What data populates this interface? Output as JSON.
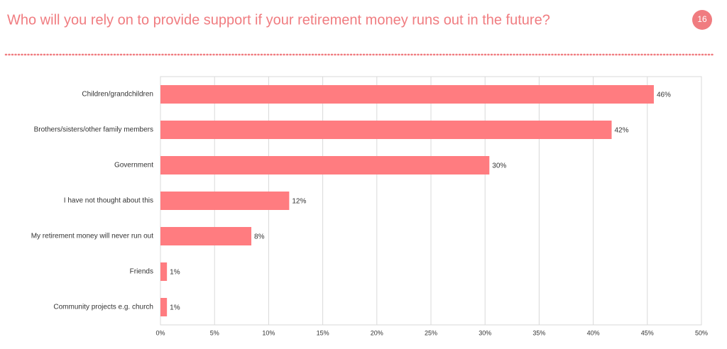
{
  "page_number": "16",
  "chart_data": {
    "type": "barh",
    "title": "Who will you rely on to provide support if your retirement money runs out in the future?",
    "categories": [
      "Children/grandchildren",
      "Brothers/sisters/other family members",
      "Government",
      "I have not thought about this",
      "My retirement money will never run out",
      "Friends",
      "Community projects e.g. church"
    ],
    "values": [
      45.6,
      41.7,
      30.4,
      11.9,
      8.4,
      0.6,
      0.6
    ],
    "value_labels": [
      "46%",
      "42%",
      "30%",
      "12%",
      "8%",
      "1%",
      "1%"
    ],
    "color": "#ff7c80",
    "xlim": [
      0,
      50
    ],
    "xticks": [
      {
        "value": 0,
        "label": "0%"
      },
      {
        "value": 5,
        "label": "5%"
      },
      {
        "value": 10,
        "label": "10%"
      },
      {
        "value": 15,
        "label": "15%"
      },
      {
        "value": 20,
        "label": "20%"
      },
      {
        "value": 25,
        "label": "25%"
      },
      {
        "value": 30,
        "label": "30%"
      },
      {
        "value": 35,
        "label": "35%"
      },
      {
        "value": 40,
        "label": "40%"
      },
      {
        "value": 45,
        "label": "45%"
      },
      {
        "value": 50,
        "label": "50%"
      }
    ],
    "grid": true
  }
}
